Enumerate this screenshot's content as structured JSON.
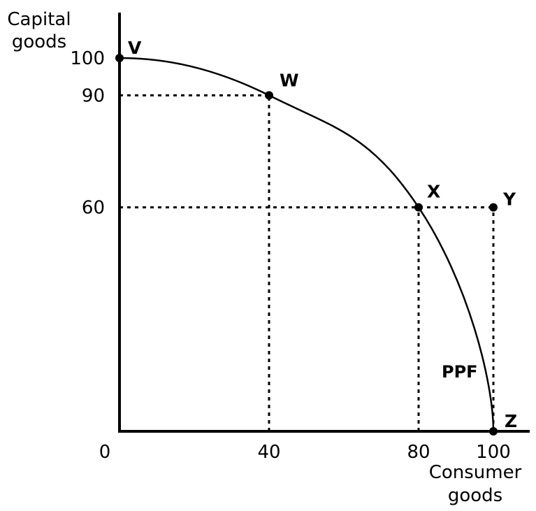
{
  "chart_data": {
    "type": "line",
    "title": "",
    "xlabel": [
      "Consumer",
      "goods"
    ],
    "ylabel": [
      "Capital",
      "goods"
    ],
    "xlim": [
      0,
      100
    ],
    "ylim": [
      0,
      100
    ],
    "x_ticks": [
      0,
      40,
      80,
      100
    ],
    "y_ticks": [
      60,
      90,
      100
    ],
    "grid": false,
    "series": [
      {
        "name": "PPF",
        "points": [
          {
            "x": 0,
            "y": 100
          },
          {
            "x": 40,
            "y": 90
          },
          {
            "x": 80,
            "y": 60
          },
          {
            "x": 100,
            "y": 0
          }
        ]
      }
    ],
    "points": [
      {
        "label": "V",
        "x": 0,
        "y": 100
      },
      {
        "label": "W",
        "x": 40,
        "y": 90
      },
      {
        "label": "X",
        "x": 80,
        "y": 60
      },
      {
        "label": "Y",
        "x": 100,
        "y": 60
      },
      {
        "label": "Z",
        "x": 100,
        "y": 0
      }
    ],
    "guides": [
      {
        "x1": 0,
        "y1": 90,
        "x2": 40,
        "y2": 90
      },
      {
        "x1": 40,
        "y1": 0,
        "x2": 40,
        "y2": 90
      },
      {
        "x1": 0,
        "y1": 60,
        "x2": 100,
        "y2": 60
      },
      {
        "x1": 80,
        "y1": 0,
        "x2": 80,
        "y2": 60
      },
      {
        "x1": 100,
        "y1": 0,
        "x2": 100,
        "y2": 60
      }
    ]
  }
}
